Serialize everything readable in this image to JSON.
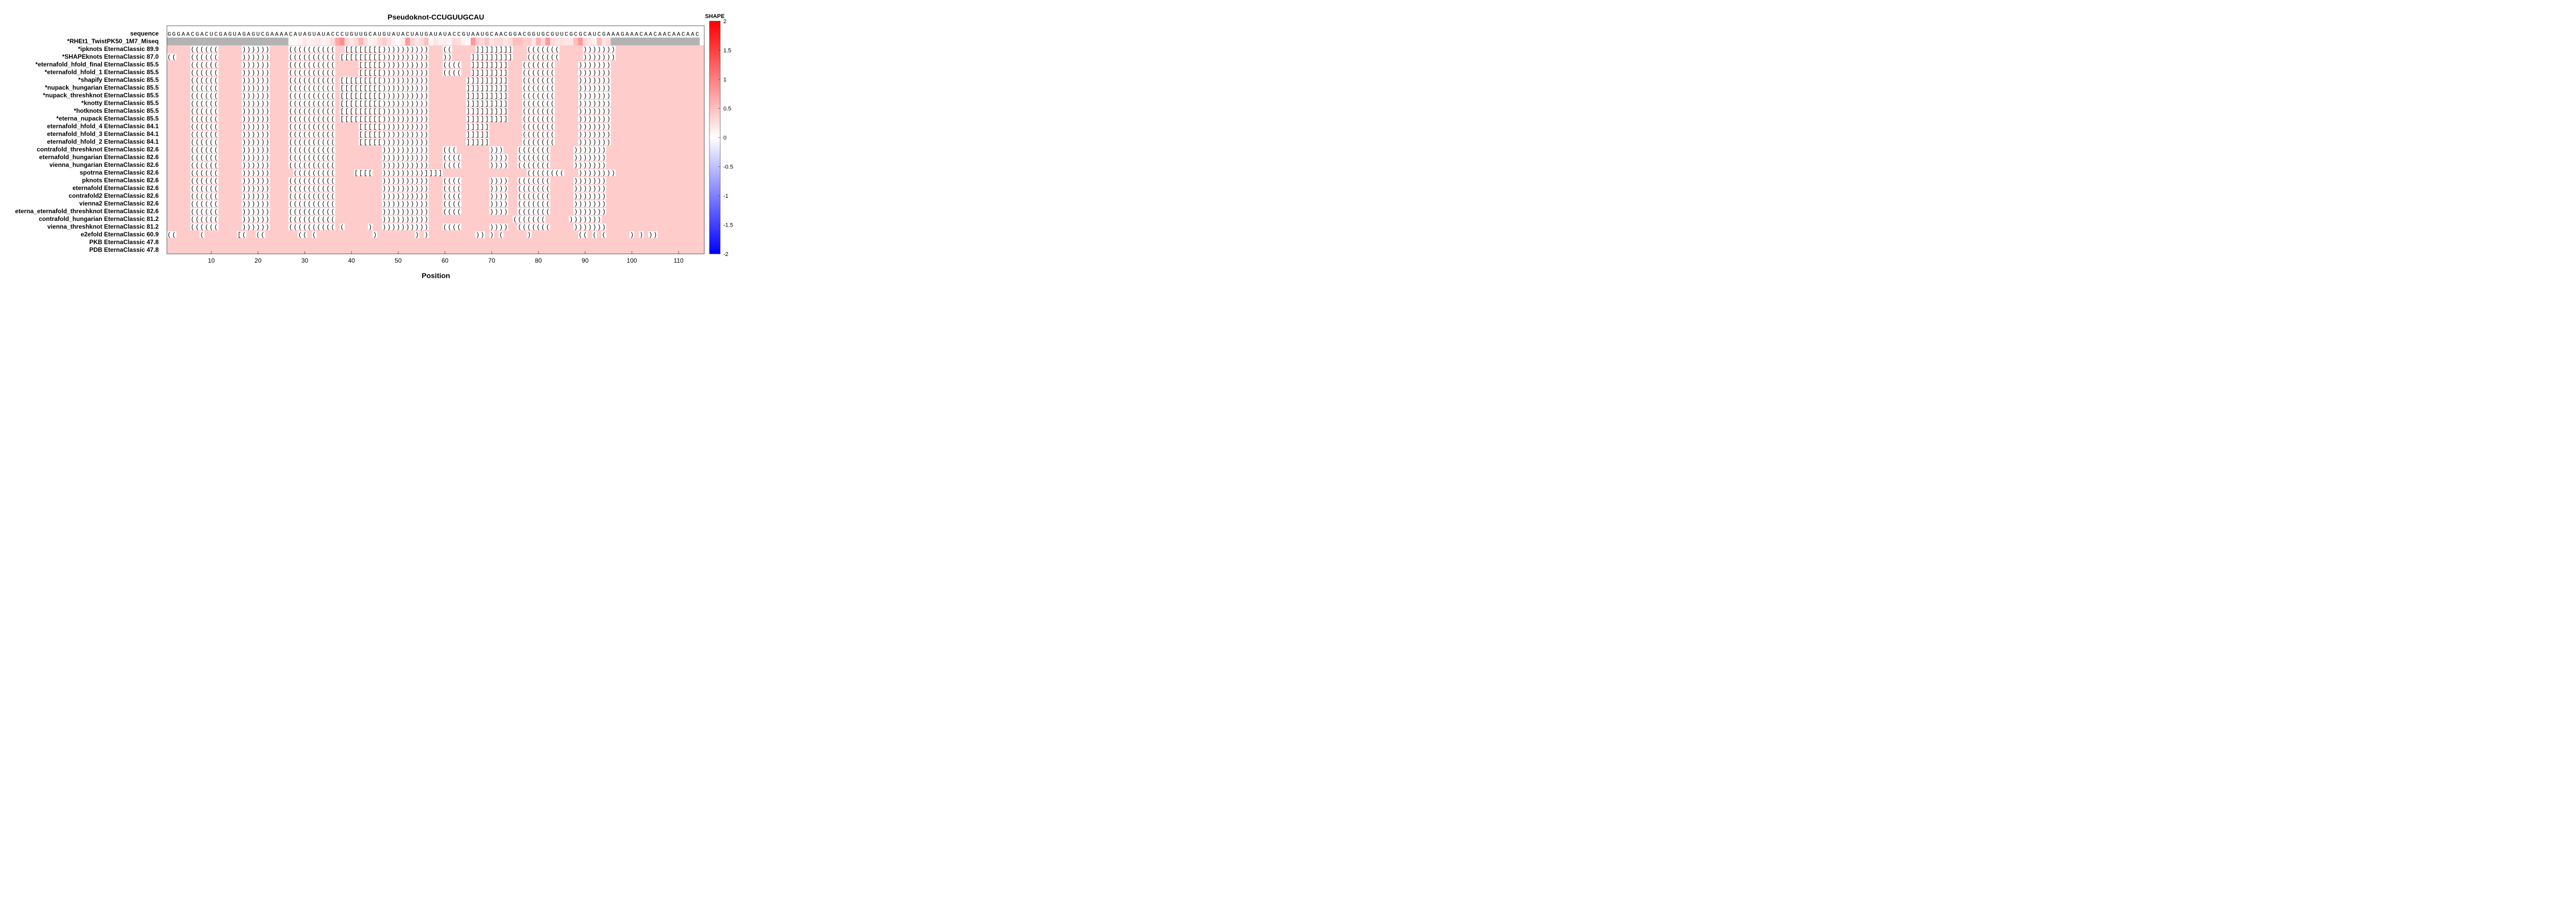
{
  "chart_data": {
    "type": "heatmap",
    "title": "Pseudoknot-CCUGUUGCAU",
    "xlabel": "Position",
    "xlim": [
      0.5,
      115.5
    ],
    "xticks": [
      10,
      20,
      30,
      40,
      50,
      60,
      70,
      80,
      90,
      100,
      110
    ],
    "colorbar": {
      "label": "SHAPE",
      "range": [
        -2,
        2
      ],
      "ticks": [
        2,
        1.5,
        1,
        0.5,
        0,
        -0.5,
        -1,
        -1.5,
        -2
      ],
      "tick_labels": [
        "2",
        "1.5",
        "1",
        "0.5",
        "0",
        "-0.5",
        "-1",
        "-1.5",
        "-2"
      ]
    },
    "sequence_label": "sequence",
    "sequence": "GGGAACGACUCGAGUAGAGUCGAAAACAUAGUAUACCCUGUUGCAUGUAUACUAUGAUAUACCGUAAUGCAACGGACGGUGCGUUCGCGCAUCGAAAGAAACAACAACAACAAC",
    "data_row_label": "*RHEt1_TwistPK50_1M7_Miseq",
    "shape_range_positions": [
      27,
      95
    ],
    "shape_values": [
      0.05,
      0.05,
      0.1,
      0.2,
      0.1,
      0.15,
      0.2,
      0.1,
      0.15,
      0.3,
      0.7,
      0.9,
      0.3,
      0.2,
      0.3,
      0.6,
      0.25,
      0.1,
      0.15,
      0.3,
      0.4,
      0.25,
      0.1,
      0.05,
      0.15,
      0.8,
      0.35,
      0.2,
      0.3,
      0.5,
      0.05,
      0.2,
      0.1,
      0.15,
      0.1,
      0.3,
      0.25,
      0.1,
      0.05,
      0.8,
      0.4,
      0.3,
      0.45,
      0.2,
      0.3,
      0.3,
      0.2,
      0.3,
      0.5,
      0.5,
      0.4,
      0.4,
      0.2,
      0.6,
      0.3,
      0.8,
      0.3,
      0.2,
      0.25,
      0.2,
      0.2,
      0.5,
      0.8,
      0.3,
      0.2,
      0.1,
      0.55,
      0.2,
      0.3
    ],
    "rows": [
      {
        "label": "*ipknots EternaClassic",
        "score": "89.9",
        "structure": ".....((((((.....))))))....((((((((((..[[[[[[[[))))))))))...((.....]]]]]]]]...(((((((.....)))))))....................."
      },
      {
        "label": "*SHAPEknots EternaClassic",
        "score": "87.0",
        "structure": "((...((((((.....))))))....((((((((((.[[[[[[[[[))))))))))...))....]]]]]]]]]...(((((((.....)))))))....................."
      },
      {
        "label": "*eternafold_hfold_final EternaClassic",
        "score": "85.5",
        "structure": ".....((((((.....))))))....((((((((((.....[[[[[))))))))))...((((..]]]]]]]]...(((((((.....)))))))....................."
      },
      {
        "label": "*eternafold_hfold_1 EternaClassic",
        "score": "85.5",
        "structure": ".....((((((.....))))))....((((((((((.....[[[[[))))))))))...((((..]]]]]]]]...(((((((.....)))))))....................."
      },
      {
        "label": "*shapify EternaClassic",
        "score": "85.5",
        "structure": ".....((((((.....))))))....((((((((((.[[[[[[[[[))))))))))........]]]]]]]]]...(((((((.....)))))))....................."
      },
      {
        "label": "*nupack_hungarian EternaClassic",
        "score": "85.5",
        "structure": ".....((((((.....))))))....((((((((((.[[[[[[[[[))))))))))........]]]]]]]]]...(((((((.....)))))))....................."
      },
      {
        "label": "*nupack_threshknot EternaClassic",
        "score": "85.5",
        "structure": ".....((((((.....))))))....((((((((((.[[[[[[[[[))))))))))........]]]]]]]]]...(((((((.....)))))))....................."
      },
      {
        "label": "*knotty EternaClassic",
        "score": "85.5",
        "structure": ".....((((((.....))))))....((((((((((.[[[[[[[[[))))))))))........]]]]]]]]]...(((((((.....)))))))....................."
      },
      {
        "label": "*hotknots EternaClassic",
        "score": "85.5",
        "structure": ".....((((((.....))))))....((((((((((.[[[[[[[[[))))))))))........]]]]]]]]]...(((((((.....)))))))....................."
      },
      {
        "label": "*eterna_nupack EternaClassic",
        "score": "85.5",
        "structure": ".....((((((.....))))))....((((((((((.[[[[[[[[[))))))))))........]]]]]]]]]...(((((((.....)))))))....................."
      },
      {
        "label": "eternafold_hfold_4 EternaClassic",
        "score": "84.1",
        "structure": ".....((((((.....))))))....((((((((((.....[[[[[))))))))))........]]]]].......(((((((.....)))))))....................."
      },
      {
        "label": "eternafold_hfold_3 EternaClassic",
        "score": "84.1",
        "structure": ".....((((((.....))))))....((((((((((.....[[[[[))))))))))........]]]]].......(((((((.....)))))))....................."
      },
      {
        "label": "eternafold_hfold_2 EternaClassic",
        "score": "84.1",
        "structure": ".....((((((.....))))))....((((((((((.....[[[[[))))))))))........]]]]].......(((((((.....)))))))....................."
      },
      {
        "label": "contrafold_threshknot EternaClassic",
        "score": "82.6",
        "structure": ".....((((((.....))))))....((((((((((..........))))))))))...(((.......)))...(((((((.....)))))))....................."
      },
      {
        "label": "eternafold_hungarian EternaClassic",
        "score": "82.6",
        "structure": ".....((((((.....))))))....((((((((((..........))))))))))...((((......))))..(((((((.....)))))))....................."
      },
      {
        "label": "vienna_hungarian EternaClassic",
        "score": "82.6",
        "structure": ".....((((((.....))))))....((((((((((..........))))))))))...((((......))))..(((((((.....)))))))....................."
      },
      {
        "label": "spotrna EternaClassic",
        "score": "82.6",
        "structure": ".....((((((.....)))))).....(((((((((....[[[[..)))))))))]]]]..................((((((((...))))))))...................."
      },
      {
        "label": "pknots EternaClassic",
        "score": "82.6",
        "structure": ".....((((((.....))))))....((((((((((..........))))))))))...((((......))))..(((((((.....)))))))....................."
      },
      {
        "label": "eternafold EternaClassic",
        "score": "82.6",
        "structure": ".....((((((.....))))))....((((((((((..........))))))))))...((((......))))..(((((((.....)))))))....................."
      },
      {
        "label": "contrafold2 EternaClassic",
        "score": "82.6",
        "structure": ".....((((((.....))))))....((((((((((..........))))))))))...((((......))))..(((((((.....)))))))....................."
      },
      {
        "label": "vienna2 EternaClassic",
        "score": "82.6",
        "structure": ".....((((((.....))))))....((((((((((..........))))))))))...((((......))))..(((((((.....)))))))....................."
      },
      {
        "label": "eterna_eternafold_threshknot EternaClassic",
        "score": "82.6",
        "structure": ".....((((((.....))))))....((((((((((..........))))))))))...((((......))))..(((((((.....)))))))....................."
      },
      {
        "label": "contrafold_hungarian EternaClassic",
        "score": "81.2",
        "structure": ".....((((((.....))))))....((((((((((..........))))))))))..................(((((((.....)))))))....................."
      },
      {
        "label": "vienna_threshknot EternaClassic",
        "score": "81.2",
        "structure": ".....((((((.....))))))....((((((((((.(.....)..))))))))))...((((......))))..(((((((.....)))))))....................."
      },
      {
        "label": "e2efold EternaClassic",
        "score": "60.9",
        "structure": "((.....(.......[(..((.......((.(............)........).)..........)).).(.....)..........((.(.(.....).).))...........)..........).).)"
      },
      {
        "label": "PKB EternaClassic",
        "score": "47.8",
        "structure": ""
      },
      {
        "label": "PDB EternaClassic",
        "score": "47.8",
        "structure": ""
      }
    ]
  }
}
